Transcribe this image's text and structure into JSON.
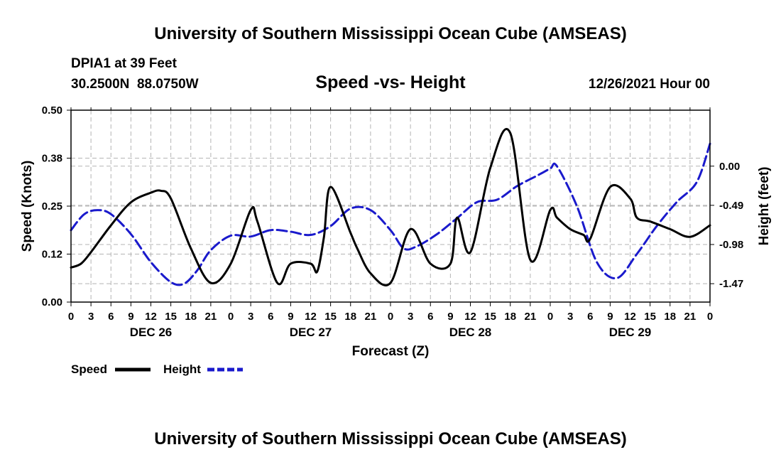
{
  "page": {
    "title_top": "University of Southern Mississippi Ocean Cube (AMSEAS)",
    "title_bottom": "University of Southern Mississippi Ocean Cube (AMSEAS)",
    "station": "DPIA1 at 39 Feet",
    "coords": "30.2500N  88.0750W",
    "datetime": "12/26/2021 Hour 00"
  },
  "legend": [
    {
      "label": "Speed",
      "color": "#000000",
      "dash": "solid"
    },
    {
      "label": "Height",
      "color": "#1a1acc",
      "dash": "dashed"
    }
  ],
  "chart_data": {
    "type": "line",
    "title": "Speed -vs- Height",
    "xlabel": "Forecast (Z)",
    "ylabel_left": "Speed (Knots)",
    "ylabel_right": "Height (feet)",
    "xlim_hours": [
      0,
      96
    ],
    "x_tick_labels": [
      "0",
      "3",
      "6",
      "9",
      "12",
      "15",
      "18",
      "21",
      "0",
      "3",
      "6",
      "9",
      "12",
      "15",
      "18",
      "21",
      "0",
      "3",
      "6",
      "9",
      "12",
      "15",
      "18",
      "21",
      "0",
      "3",
      "6",
      "9",
      "12",
      "15",
      "18",
      "21",
      "0"
    ],
    "day_labels": [
      {
        "label": "DEC 26",
        "hour": 12
      },
      {
        "label": "DEC 27",
        "hour": 36
      },
      {
        "label": "DEC 28",
        "hour": 60
      },
      {
        "label": "DEC 29",
        "hour": 84
      }
    ],
    "left_axis": {
      "ylim": [
        0,
        0.5
      ],
      "ticks": [
        0.0,
        0.125,
        0.25,
        0.375,
        0.5
      ],
      "tick_labels": [
        "0.00",
        "0.12",
        "0.25",
        "0.38",
        "0.50"
      ]
    },
    "right_axis": {
      "ylim": [
        -1.7,
        0.7
      ],
      "ticks": [
        0.0,
        -0.49,
        -0.98,
        -1.47
      ],
      "tick_labels": [
        "0.00",
        "-0.49",
        "-0.98",
        "-1.47"
      ]
    },
    "grid": true,
    "series": [
      {
        "name": "Speed",
        "axis": "left",
        "color": "#000000",
        "x": [
          0,
          1.5,
          3,
          6,
          9,
          12,
          13.5,
          15,
          18,
          21,
          24,
          27,
          28,
          31,
          33,
          36,
          37,
          38,
          39,
          42,
          43,
          45,
          48,
          51,
          54,
          57,
          58,
          60,
          63,
          66,
          69,
          72,
          73,
          75,
          77,
          78,
          81,
          84,
          85,
          87,
          90,
          93,
          96
        ],
        "y": [
          0.09,
          0.1,
          0.13,
          0.2,
          0.26,
          0.285,
          0.29,
          0.27,
          0.14,
          0.05,
          0.1,
          0.24,
          0.21,
          0.05,
          0.1,
          0.1,
          0.08,
          0.17,
          0.3,
          0.18,
          0.14,
          0.075,
          0.05,
          0.19,
          0.1,
          0.1,
          0.22,
          0.13,
          0.35,
          0.44,
          0.11,
          0.24,
          0.22,
          0.19,
          0.175,
          0.165,
          0.3,
          0.27,
          0.22,
          0.21,
          0.19,
          0.17,
          0.2
        ]
      },
      {
        "name": "Height",
        "axis": "right",
        "color": "#1a1acc",
        "x": [
          0,
          2,
          4,
          6,
          9,
          12,
          15,
          17,
          19,
          21,
          24,
          27,
          30,
          33,
          36,
          39,
          42,
          45,
          48,
          50,
          52,
          55,
          58,
          61,
          64,
          67,
          70,
          72,
          73,
          76,
          79,
          82,
          85,
          88,
          91,
          94,
          96
        ],
        "y": [
          -0.8,
          -0.6,
          -0.55,
          -0.6,
          -0.85,
          -1.2,
          -1.45,
          -1.47,
          -1.3,
          -1.05,
          -0.87,
          -0.88,
          -0.8,
          -0.82,
          -0.86,
          -0.75,
          -0.53,
          -0.55,
          -0.8,
          -1.03,
          -1.0,
          -0.85,
          -0.65,
          -0.45,
          -0.42,
          -0.25,
          -0.12,
          -0.03,
          0.0,
          -0.5,
          -1.2,
          -1.4,
          -1.1,
          -0.75,
          -0.45,
          -0.2,
          0.28
        ]
      }
    ]
  }
}
